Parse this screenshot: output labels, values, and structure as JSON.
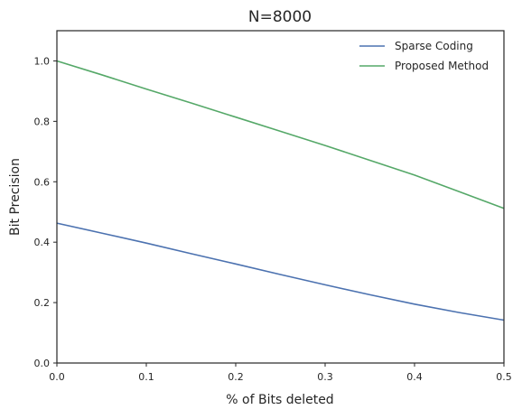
{
  "chart_data": {
    "type": "line",
    "title": "N=8000",
    "xlabel": "% of Bits deleted",
    "ylabel": "Bit Precision",
    "xlim": [
      0,
      0.5
    ],
    "ylim": [
      0,
      1.1
    ],
    "xticks": [
      "0.0",
      "0.1",
      "0.2",
      "0.3",
      "0.4",
      "0.5"
    ],
    "yticks": [
      "0.0",
      "0.2",
      "0.4",
      "0.6",
      "0.8",
      "1.0"
    ],
    "grid": false,
    "legend_position": "top-right",
    "x": [
      0.0,
      0.05,
      0.1,
      0.15,
      0.2,
      0.25,
      0.3,
      0.35,
      0.4,
      0.45,
      0.5
    ],
    "series": [
      {
        "name": "Sparse Coding",
        "color": "#4c72b0",
        "values": [
          0.463,
          0.43,
          0.397,
          0.362,
          0.328,
          0.293,
          0.259,
          0.226,
          0.195,
          0.167,
          0.142
        ]
      },
      {
        "name": "Proposed Method",
        "color": "#55a868",
        "values": [
          1.0,
          0.954,
          0.907,
          0.861,
          0.814,
          0.767,
          0.72,
          0.671,
          0.622,
          0.567,
          0.512
        ]
      }
    ]
  }
}
